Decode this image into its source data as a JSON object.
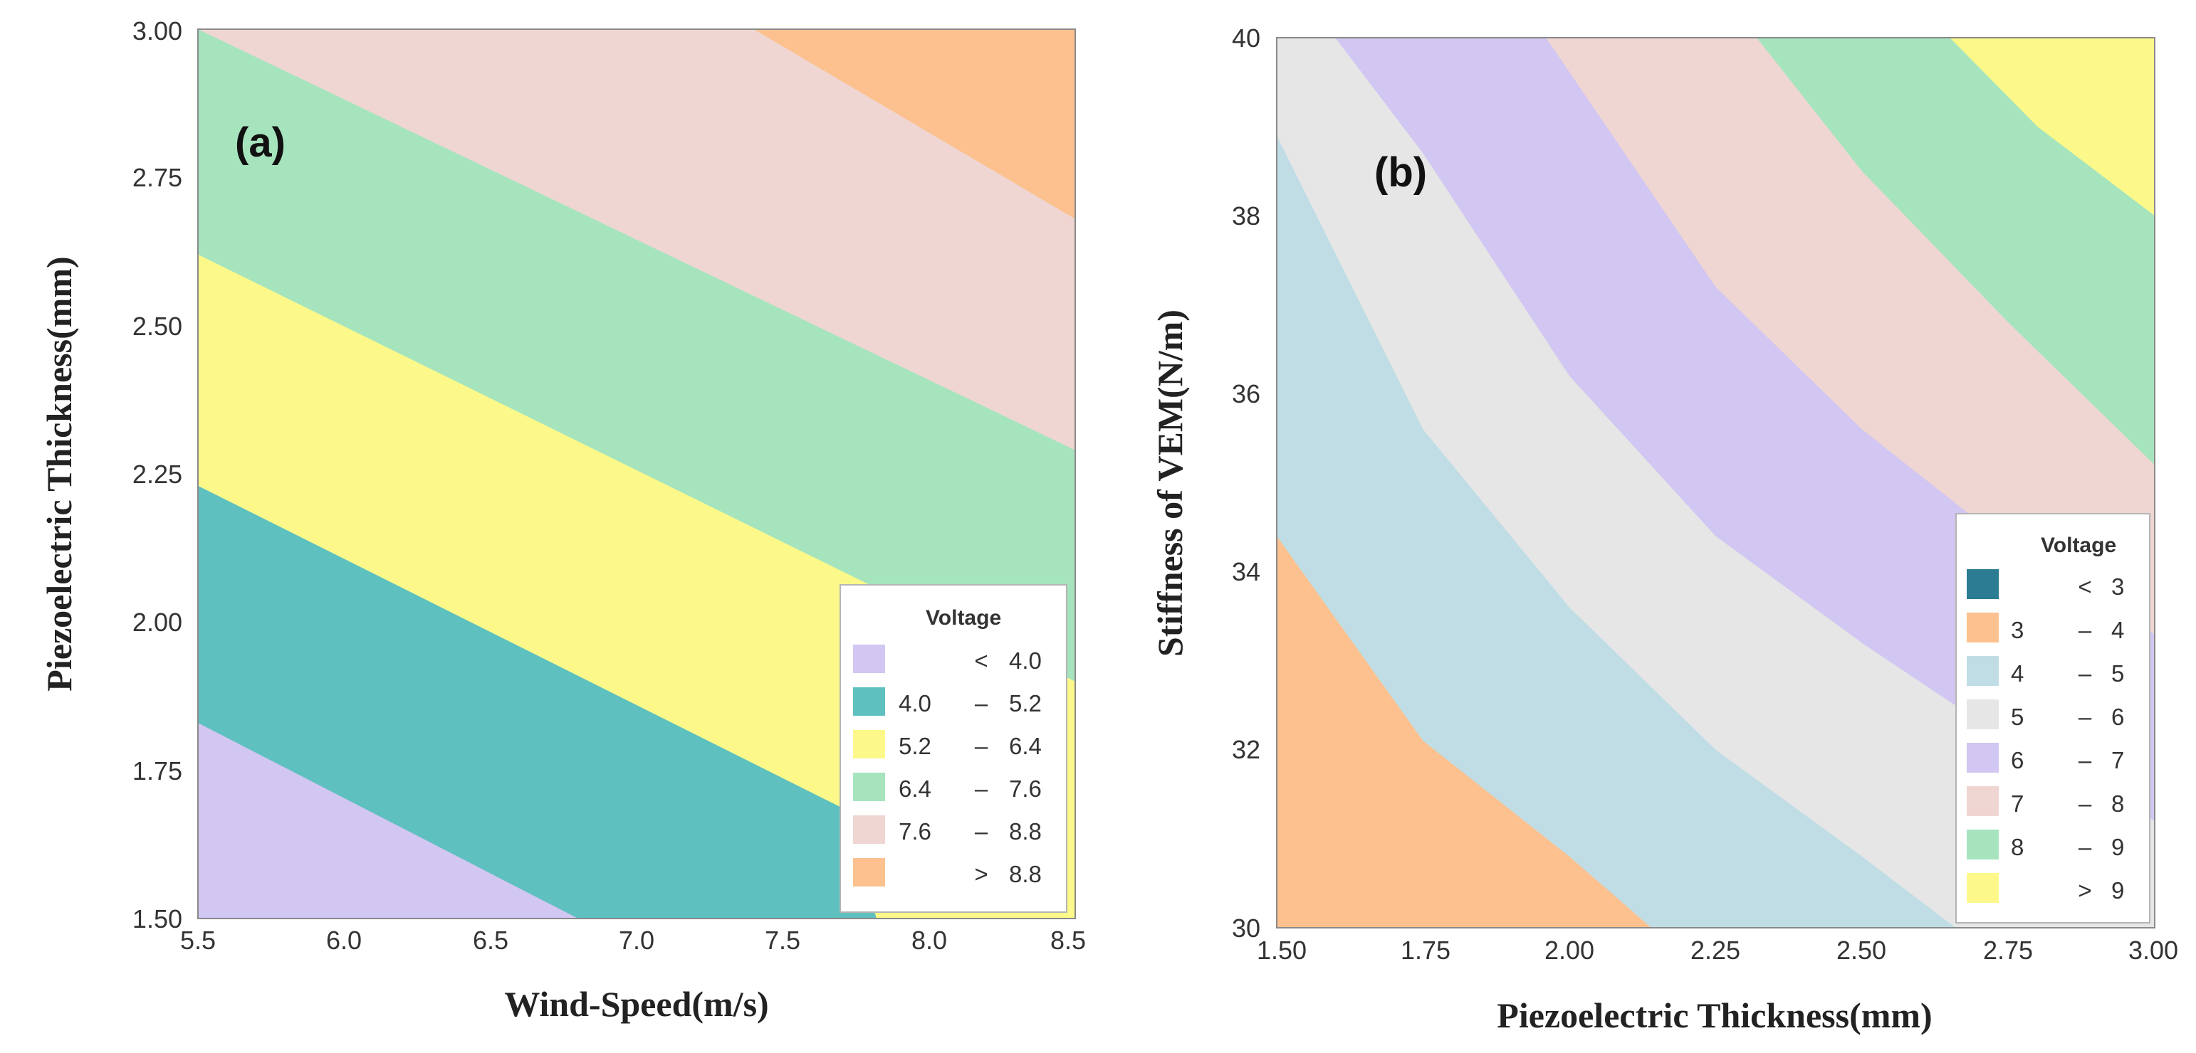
{
  "chart_data": [
    {
      "type": "contour",
      "panel_label": "(a)",
      "xlabel": "Wind-Speed(m/s)",
      "ylabel": "Piezoelectric Thickness(mm)",
      "xlim": [
        5.5,
        8.5
      ],
      "ylim": [
        1.5,
        3.0
      ],
      "xticks": [
        "5.5",
        "6.0",
        "6.5",
        "7.0",
        "7.5",
        "8.0",
        "8.5"
      ],
      "yticks": [
        "1.50",
        "1.75",
        "2.00",
        "2.25",
        "2.50",
        "2.75",
        "3.00"
      ],
      "legend": {
        "title": "Voltage",
        "entries": [
          {
            "op": "<",
            "lo": "",
            "hi": "4.0",
            "color": "#D2C6F2"
          },
          {
            "op": "–",
            "lo": "4.0",
            "hi": "5.2",
            "color": "#5FC0C0"
          },
          {
            "op": "–",
            "lo": "5.2",
            "hi": "6.4",
            "color": "#FCF98A"
          },
          {
            "op": "–",
            "lo": "6.4",
            "hi": "7.6",
            "color": "#A6E4BE"
          },
          {
            "op": "–",
            "lo": "7.6",
            "hi": "8.8",
            "color": "#EFD6D2"
          },
          {
            "op": ">",
            "lo": "",
            "hi": "8.8",
            "color": "#FCC18E"
          }
        ]
      },
      "contours": [
        {
          "level": 4.0,
          "points": [
            [
              5.5,
              1.83
            ],
            [
              6.8,
              1.5
            ]
          ]
        },
        {
          "level": 5.2,
          "points": [
            [
              5.5,
              2.23
            ],
            [
              7.73,
              1.68
            ],
            [
              7.82,
              1.5
            ]
          ]
        },
        {
          "level": 6.4,
          "points": [
            [
              5.5,
              2.62
            ],
            [
              7.85,
              2.05
            ],
            [
              8.5,
              1.9
            ]
          ]
        },
        {
          "level": 7.6,
          "points": [
            [
              5.5,
              3.0
            ],
            [
              8.5,
              2.29
            ]
          ]
        },
        {
          "level": 8.8,
          "points": [
            [
              7.4,
              3.0
            ],
            [
              8.5,
              2.68
            ]
          ]
        }
      ]
    },
    {
      "type": "contour",
      "panel_label": "(b)",
      "xlabel": "Piezoelectric Thickness(mm)",
      "ylabel": "Stiffness of VEM(N/m)",
      "xlim": [
        1.5,
        3.0
      ],
      "ylim": [
        30,
        40
      ],
      "xticks": [
        "1.50",
        "1.75",
        "2.00",
        "2.25",
        "2.50",
        "2.75",
        "3.00"
      ],
      "yticks": [
        "30",
        "32",
        "34",
        "36",
        "38",
        "40"
      ],
      "legend": {
        "title": "Voltage",
        "entries": [
          {
            "op": "<",
            "lo": "",
            "hi": "3",
            "color": "#2C7D94"
          },
          {
            "op": "–",
            "lo": "3",
            "hi": "4",
            "color": "#FCC18E"
          },
          {
            "op": "–",
            "lo": "4",
            "hi": "5",
            "color": "#C0DDE6"
          },
          {
            "op": "–",
            "lo": "5",
            "hi": "6",
            "color": "#E6E6E6"
          },
          {
            "op": "–",
            "lo": "6",
            "hi": "7",
            "color": "#D2C6F2"
          },
          {
            "op": "–",
            "lo": "7",
            "hi": "8",
            "color": "#EFD6D2"
          },
          {
            "op": "–",
            "lo": "8",
            "hi": "9",
            "color": "#A6E4BE"
          },
          {
            "op": ">",
            "lo": "",
            "hi": "9",
            "color": "#FCF98A"
          }
        ]
      },
      "contours": [
        {
          "level": 4,
          "points": [
            [
              1.5,
              34.4
            ],
            [
              1.75,
              32.1
            ],
            [
              2.0,
              30.8
            ],
            [
              2.14,
              30.0
            ]
          ]
        },
        {
          "level": 5,
          "points": [
            [
              1.5,
              38.9
            ],
            [
              1.75,
              35.6
            ],
            [
              2.0,
              33.6
            ],
            [
              2.25,
              32.0
            ],
            [
              2.5,
              30.8
            ],
            [
              2.66,
              30.0
            ]
          ]
        },
        {
          "level": 6,
          "points": [
            [
              1.6,
              40.0
            ],
            [
              1.75,
              38.7
            ],
            [
              2.0,
              36.2
            ],
            [
              2.25,
              34.4
            ],
            [
              2.5,
              33.2
            ],
            [
              2.75,
              32.1
            ],
            [
              3.0,
              31.2
            ]
          ]
        },
        {
          "level": 7,
          "points": [
            [
              1.96,
              40.0
            ],
            [
              2.25,
              37.2
            ],
            [
              2.5,
              35.6
            ],
            [
              2.75,
              34.3
            ],
            [
              3.0,
              33.3
            ]
          ]
        },
        {
          "level": 8,
          "points": [
            [
              2.32,
              40.0
            ],
            [
              2.5,
              38.5
            ],
            [
              2.75,
              36.8
            ],
            [
              3.0,
              35.2
            ]
          ]
        },
        {
          "level": 9,
          "points": [
            [
              2.65,
              40.0
            ],
            [
              2.8,
              39.0
            ],
            [
              3.0,
              38.0
            ]
          ]
        }
      ]
    }
  ]
}
